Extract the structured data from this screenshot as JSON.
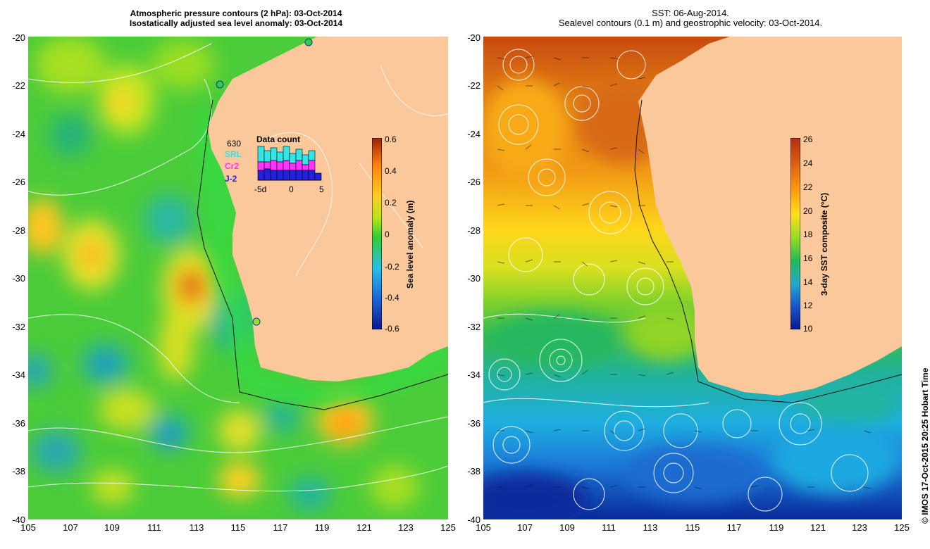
{
  "left_panel": {
    "title_line1": "Atmospheric pressure contours (2 hPa): 03-Oct-2014",
    "title_line2": "Isostatically adjusted sea level anomaly: 03-Oct-2014",
    "colorbar_title": "Sea level anomaly (m)",
    "colorbar_ticks": [
      "0.6",
      "0.4",
      "0.2",
      "0",
      "-0.2",
      "-0.4",
      "-0.6"
    ],
    "data_count": {
      "title": "Data count",
      "max_label": "630",
      "series": [
        {
          "name": "SRL",
          "color": "#33e6e6"
        },
        {
          "name": "Cr2",
          "color": "#ff33ff"
        },
        {
          "name": "J-2",
          "color": "#2222dd"
        }
      ],
      "x_ticks": [
        "-5d",
        "0",
        "5"
      ]
    }
  },
  "right_panel": {
    "title_line1": "SST: 06-Aug-2014.",
    "title_line2": "Sealevel contours (0.1 m) and geostrophic velocity: 03-Oct-2014.",
    "colorbar_title": "3-day SST composite (°C)",
    "colorbar_ticks": [
      "26",
      "24",
      "22",
      "20",
      "18",
      "16",
      "14",
      "12",
      "10"
    ]
  },
  "y_ticks": [
    "-20",
    "-22",
    "-24",
    "-26",
    "-28",
    "-30",
    "-32",
    "-34",
    "-36",
    "-38",
    "-40"
  ],
  "x_ticks": [
    "105",
    "107",
    "109",
    "111",
    "113",
    "115",
    "117",
    "119",
    "121",
    "123",
    "125"
  ],
  "credit": "© IMOS 17-Oct-2015 20:25 Hobart Time",
  "colors": {
    "land": "#fac89b",
    "sla_colormap": [
      "#0a1a8c",
      "#1a66d9",
      "#29bfe6",
      "#33cc33",
      "#b3e619",
      "#ffcc22",
      "#ff8010",
      "#a02008"
    ],
    "sst_colormap": [
      "#071a8c",
      "#1a55cc",
      "#22aacc",
      "#22bb55",
      "#99dd22",
      "#ffe21a",
      "#ffa010",
      "#e06010",
      "#b03010"
    ]
  }
}
